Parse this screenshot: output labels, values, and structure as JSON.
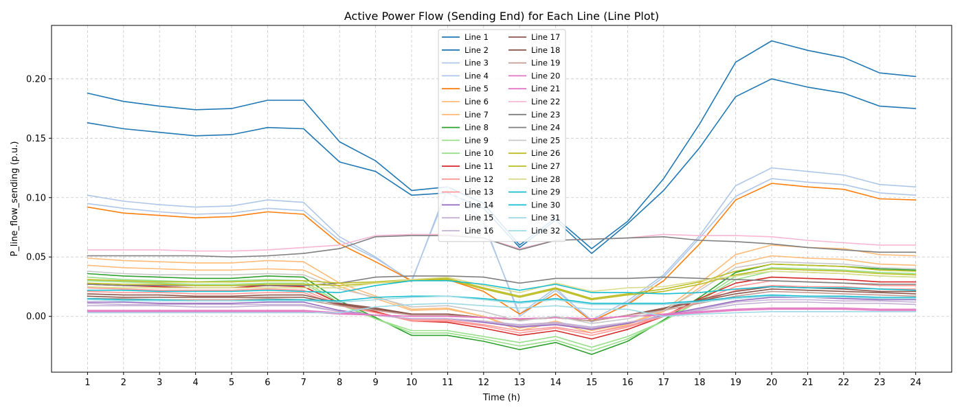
{
  "chart_data": {
    "type": "line",
    "title": "Active Power Flow (Sending End) for Each Line (Line Plot)",
    "xlabel": "Time (h)",
    "ylabel": "P_line_flow_sending (p.u.)",
    "x": [
      1,
      2,
      3,
      4,
      5,
      6,
      7,
      8,
      9,
      10,
      11,
      12,
      13,
      14,
      15,
      16,
      17,
      18,
      19,
      20,
      21,
      22,
      23,
      24
    ],
    "xlim": [
      0,
      25
    ],
    "ylim": [
      -0.047,
      0.245
    ],
    "yticks": [
      0.0,
      0.05,
      0.1,
      0.15,
      0.2
    ],
    "ytick_labels": [
      "0.00",
      "0.05",
      "0.10",
      "0.15",
      "0.20"
    ],
    "grid": true,
    "legend": {
      "placement": "upper center",
      "columns": 2
    },
    "series": [
      {
        "name": "Line 1",
        "color": "#1f77b4",
        "values": [
          0.188,
          0.181,
          0.177,
          0.174,
          0.175,
          0.182,
          0.182,
          0.147,
          0.131,
          0.106,
          0.109,
          0.095,
          0.06,
          0.083,
          0.057,
          0.08,
          0.116,
          0.162,
          0.214,
          0.232,
          0.224,
          0.218,
          0.205,
          0.202
        ]
      },
      {
        "name": "Line 2",
        "color": "#1f77b4",
        "values": [
          0.163,
          0.158,
          0.155,
          0.152,
          0.153,
          0.159,
          0.158,
          0.13,
          0.122,
          0.102,
          0.104,
          0.091,
          0.058,
          0.081,
          0.053,
          0.078,
          0.106,
          0.142,
          0.185,
          0.2,
          0.193,
          0.188,
          0.177,
          0.175
        ]
      },
      {
        "name": "Line 3",
        "color": "#aec7e8",
        "values": [
          0.102,
          0.097,
          0.094,
          0.092,
          0.093,
          0.098,
          0.096,
          0.067,
          0.05,
          0.029,
          0.109,
          0.08,
          0.0,
          0.022,
          -0.003,
          0.013,
          0.035,
          0.068,
          0.11,
          0.125,
          0.122,
          0.119,
          0.111,
          0.109
        ]
      },
      {
        "name": "Line 4",
        "color": "#aec7e8",
        "values": [
          0.095,
          0.091,
          0.088,
          0.086,
          0.087,
          0.091,
          0.089,
          0.064,
          0.049,
          0.03,
          0.106,
          0.078,
          0.002,
          0.024,
          -0.005,
          0.011,
          0.033,
          0.066,
          0.101,
          0.116,
          0.113,
          0.111,
          0.104,
          0.102
        ]
      },
      {
        "name": "Line 5",
        "color": "#ff7f0e",
        "values": [
          0.092,
          0.087,
          0.085,
          0.083,
          0.084,
          0.088,
          0.086,
          0.061,
          0.046,
          0.03,
          0.031,
          0.021,
          0.002,
          0.019,
          -0.004,
          0.01,
          0.03,
          0.061,
          0.098,
          0.112,
          0.109,
          0.107,
          0.099,
          0.098
        ]
      },
      {
        "name": "Line 6",
        "color": "#ffbb78",
        "values": [
          0.049,
          0.047,
          0.046,
          0.045,
          0.045,
          0.047,
          0.046,
          0.028,
          0.017,
          0.006,
          0.007,
          0.0,
          -0.01,
          -0.004,
          -0.012,
          -0.006,
          0.005,
          0.028,
          0.052,
          0.06,
          0.058,
          0.057,
          0.052,
          0.051
        ]
      },
      {
        "name": "Line 7",
        "color": "#ffbb78",
        "values": [
          0.043,
          0.041,
          0.04,
          0.039,
          0.039,
          0.04,
          0.039,
          0.025,
          0.015,
          0.005,
          0.006,
          0.0,
          -0.012,
          -0.005,
          -0.014,
          -0.007,
          0.004,
          0.024,
          0.044,
          0.051,
          0.049,
          0.048,
          0.044,
          0.043
        ]
      },
      {
        "name": "Line 8",
        "color": "#2ca02c",
        "values": [
          0.036,
          0.034,
          0.033,
          0.032,
          0.032,
          0.034,
          0.033,
          0.013,
          -0.001,
          -0.016,
          -0.016,
          -0.021,
          -0.028,
          -0.022,
          -0.032,
          -0.021,
          -0.003,
          0.016,
          0.037,
          0.044,
          0.043,
          0.042,
          0.04,
          0.039
        ]
      },
      {
        "name": "Line 9",
        "color": "#98df8a",
        "values": [
          0.033,
          0.031,
          0.03,
          0.029,
          0.03,
          0.031,
          0.03,
          0.011,
          -0.002,
          -0.014,
          -0.014,
          -0.019,
          -0.025,
          -0.02,
          -0.029,
          -0.019,
          -0.004,
          0.014,
          0.034,
          0.041,
          0.04,
          0.039,
          0.037,
          0.036
        ]
      },
      {
        "name": "Line 10",
        "color": "#98df8a",
        "values": [
          0.03,
          0.029,
          0.028,
          0.027,
          0.027,
          0.028,
          0.028,
          0.01,
          -0.002,
          -0.012,
          -0.012,
          -0.017,
          -0.022,
          -0.017,
          -0.026,
          -0.017,
          -0.004,
          0.013,
          0.031,
          0.038,
          0.037,
          0.036,
          0.034,
          0.033
        ]
      },
      {
        "name": "Line 11",
        "color": "#d62728",
        "values": [
          0.027,
          0.026,
          0.025,
          0.024,
          0.024,
          0.026,
          0.025,
          0.011,
          0.004,
          -0.004,
          -0.005,
          -0.01,
          -0.016,
          -0.012,
          -0.019,
          -0.011,
          0.0,
          0.015,
          0.028,
          0.033,
          0.032,
          0.031,
          0.029,
          0.029
        ]
      },
      {
        "name": "Line 12",
        "color": "#ff9896",
        "values": [
          0.024,
          0.023,
          0.022,
          0.022,
          0.022,
          0.023,
          0.022,
          0.01,
          0.003,
          -0.004,
          -0.004,
          -0.008,
          -0.014,
          -0.01,
          -0.016,
          -0.009,
          0.0,
          0.013,
          0.025,
          0.03,
          0.029,
          0.028,
          0.026,
          0.026
        ]
      },
      {
        "name": "Line 13",
        "color": "#ff9896",
        "values": [
          0.021,
          0.02,
          0.02,
          0.019,
          0.019,
          0.02,
          0.02,
          0.009,
          0.003,
          -0.003,
          -0.003,
          -0.007,
          -0.012,
          -0.009,
          -0.014,
          -0.008,
          0.001,
          0.012,
          0.022,
          0.026,
          0.025,
          0.025,
          0.023,
          0.023
        ]
      },
      {
        "name": "Line 14",
        "color": "#9467bd",
        "values": [
          0.012,
          0.012,
          0.011,
          0.011,
          0.011,
          0.012,
          0.012,
          0.005,
          0.001,
          -0.002,
          -0.002,
          -0.005,
          -0.009,
          -0.007,
          -0.011,
          -0.006,
          0.001,
          0.007,
          0.013,
          0.016,
          0.016,
          0.015,
          0.014,
          0.014
        ]
      },
      {
        "name": "Line 15",
        "color": "#c5b0d5",
        "values": [
          0.011,
          0.01,
          0.01,
          0.01,
          0.01,
          0.01,
          0.01,
          0.004,
          0.001,
          -0.002,
          -0.002,
          -0.004,
          -0.008,
          -0.006,
          -0.01,
          -0.005,
          0.0,
          0.006,
          0.012,
          0.014,
          0.014,
          0.013,
          0.013,
          0.012
        ]
      },
      {
        "name": "Line 16",
        "color": "#c5b0d5",
        "values": [
          0.009,
          0.009,
          0.009,
          0.008,
          0.008,
          0.009,
          0.009,
          0.004,
          0.001,
          -0.002,
          -0.002,
          -0.004,
          -0.007,
          -0.005,
          -0.009,
          -0.005,
          0.0,
          0.005,
          0.01,
          0.012,
          0.012,
          0.011,
          0.011,
          0.01
        ]
      },
      {
        "name": "Line 17",
        "color": "#8c564b",
        "values": [
          0.019,
          0.018,
          0.018,
          0.017,
          0.017,
          0.018,
          0.018,
          0.011,
          0.007,
          0.002,
          0.002,
          -0.001,
          -0.003,
          -0.001,
          -0.004,
          0.001,
          0.007,
          0.014,
          0.021,
          0.025,
          0.024,
          0.023,
          0.021,
          0.021
        ]
      },
      {
        "name": "Line 18",
        "color": "#8c564b",
        "values": [
          0.017,
          0.016,
          0.016,
          0.016,
          0.016,
          0.016,
          0.016,
          0.01,
          0.006,
          0.002,
          0.002,
          -0.001,
          -0.003,
          -0.001,
          -0.004,
          0.001,
          0.006,
          0.013,
          0.019,
          0.023,
          0.022,
          0.021,
          0.02,
          0.019
        ]
      },
      {
        "name": "Line 19",
        "color": "#c49c94",
        "values": [
          0.015,
          0.015,
          0.014,
          0.014,
          0.014,
          0.015,
          0.014,
          0.009,
          0.005,
          0.001,
          0.001,
          -0.001,
          -0.003,
          -0.001,
          -0.004,
          0.001,
          0.005,
          0.011,
          0.017,
          0.021,
          0.02,
          0.019,
          0.018,
          0.017
        ]
      },
      {
        "name": "Line 20",
        "color": "#e377c2",
        "values": [
          0.005,
          0.005,
          0.005,
          0.005,
          0.005,
          0.005,
          0.005,
          0.003,
          0.001,
          0.0,
          0.0,
          -0.001,
          -0.002,
          -0.001,
          -0.002,
          0.0,
          0.002,
          0.004,
          0.006,
          0.007,
          0.007,
          0.007,
          0.006,
          0.006
        ]
      },
      {
        "name": "Line 21",
        "color": "#e377c2",
        "values": [
          0.004,
          0.004,
          0.004,
          0.004,
          0.004,
          0.004,
          0.004,
          0.002,
          0.001,
          0.0,
          0.0,
          -0.001,
          -0.002,
          -0.001,
          -0.002,
          0.0,
          0.001,
          0.003,
          0.005,
          0.006,
          0.006,
          0.006,
          0.005,
          0.005
        ]
      },
      {
        "name": "Line 22",
        "color": "#f7b6d2",
        "values": [
          0.056,
          0.056,
          0.056,
          0.055,
          0.055,
          0.056,
          0.058,
          0.06,
          0.068,
          0.069,
          0.069,
          0.066,
          0.057,
          0.064,
          0.065,
          0.066,
          0.069,
          0.068,
          0.068,
          0.067,
          0.064,
          0.062,
          0.06,
          0.06
        ]
      },
      {
        "name": "Line 23",
        "color": "#7f7f7f",
        "values": [
          0.051,
          0.051,
          0.051,
          0.051,
          0.05,
          0.051,
          0.053,
          0.057,
          0.067,
          0.068,
          0.068,
          0.066,
          0.056,
          0.064,
          0.065,
          0.066,
          0.067,
          0.064,
          0.063,
          0.061,
          0.058,
          0.056,
          0.054,
          0.054
        ]
      },
      {
        "name": "Line 24",
        "color": "#7f7f7f",
        "values": [
          0.027,
          0.026,
          0.026,
          0.026,
          0.026,
          0.026,
          0.026,
          0.028,
          0.033,
          0.034,
          0.034,
          0.033,
          0.028,
          0.032,
          0.032,
          0.032,
          0.033,
          0.032,
          0.031,
          0.03,
          0.029,
          0.028,
          0.027,
          0.027
        ]
      },
      {
        "name": "Line 25",
        "color": "#c7c7c7",
        "values": [
          0.038,
          0.036,
          0.035,
          0.035,
          0.035,
          0.036,
          0.035,
          0.023,
          0.016,
          0.008,
          0.009,
          0.004,
          -0.004,
          0.0,
          -0.006,
          -0.002,
          0.005,
          0.022,
          0.041,
          0.046,
          0.045,
          0.044,
          0.041,
          0.04
        ]
      },
      {
        "name": "Line 26",
        "color": "#bcbd22",
        "values": [
          0.031,
          0.03,
          0.029,
          0.029,
          0.029,
          0.03,
          0.03,
          0.028,
          0.029,
          0.031,
          0.032,
          0.024,
          0.017,
          0.024,
          0.015,
          0.019,
          0.023,
          0.029,
          0.038,
          0.044,
          0.043,
          0.042,
          0.039,
          0.038
        ]
      },
      {
        "name": "Line 27",
        "color": "#bcbd22",
        "values": [
          0.028,
          0.027,
          0.027,
          0.026,
          0.026,
          0.027,
          0.027,
          0.026,
          0.028,
          0.03,
          0.031,
          0.023,
          0.016,
          0.023,
          0.014,
          0.018,
          0.021,
          0.027,
          0.035,
          0.04,
          0.039,
          0.038,
          0.036,
          0.035
        ]
      },
      {
        "name": "Line 28",
        "color": "#dbdb8d",
        "values": [
          0.025,
          0.024,
          0.024,
          0.024,
          0.024,
          0.024,
          0.024,
          0.024,
          0.028,
          0.031,
          0.033,
          0.026,
          0.02,
          0.028,
          0.021,
          0.024,
          0.025,
          0.03,
          0.034,
          0.038,
          0.037,
          0.036,
          0.034,
          0.033
        ]
      },
      {
        "name": "Line 29",
        "color": "#17becf",
        "values": [
          0.022,
          0.022,
          0.021,
          0.021,
          0.021,
          0.022,
          0.021,
          0.02,
          0.026,
          0.03,
          0.03,
          0.027,
          0.022,
          0.027,
          0.02,
          0.02,
          0.019,
          0.02,
          0.023,
          0.025,
          0.024,
          0.024,
          0.023,
          0.022
        ]
      },
      {
        "name": "Line 30",
        "color": "#17becf",
        "values": [
          0.015,
          0.014,
          0.014,
          0.013,
          0.013,
          0.014,
          0.014,
          0.013,
          0.016,
          0.017,
          0.017,
          0.015,
          0.012,
          0.015,
          0.011,
          0.011,
          0.011,
          0.013,
          0.016,
          0.018,
          0.017,
          0.017,
          0.016,
          0.016
        ]
      },
      {
        "name": "Line 31",
        "color": "#9edae5",
        "values": [
          0.014,
          0.013,
          0.013,
          0.013,
          0.013,
          0.013,
          0.013,
          0.012,
          0.014,
          0.016,
          0.017,
          0.014,
          0.011,
          0.014,
          0.01,
          0.01,
          0.01,
          0.012,
          0.015,
          0.017,
          0.016,
          0.016,
          0.015,
          0.015
        ]
      },
      {
        "name": "Line 32",
        "color": "#9edae5",
        "values": [
          0.003,
          0.003,
          0.003,
          0.003,
          0.003,
          0.003,
          0.003,
          0.003,
          0.008,
          0.01,
          0.011,
          0.009,
          0.007,
          0.009,
          0.006,
          0.006,
          0.0,
          0.002,
          0.003,
          0.004,
          0.004,
          0.004,
          0.004,
          0.004
        ]
      }
    ]
  }
}
